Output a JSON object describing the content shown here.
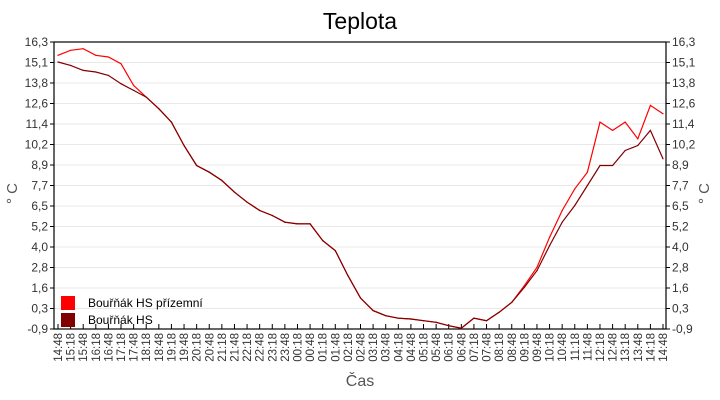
{
  "chart_data": {
    "type": "line",
    "title": "Teplota",
    "xlabel": "Čas",
    "ylabel": "° C",
    "ylim": [
      -0.9,
      16.3
    ],
    "yticks": [
      "16,3",
      "15,1",
      "13,8",
      "12,6",
      "11,4",
      "10,2",
      "8,9",
      "7,7",
      "6,5",
      "5,2",
      "4,0",
      "2,8",
      "1,6",
      "0,3",
      "-0,9"
    ],
    "grid": true,
    "legend_position": "bottom-left",
    "categories": [
      "14:48",
      "15:18",
      "15:48",
      "16:18",
      "16:48",
      "17:18",
      "17:48",
      "18:18",
      "18:48",
      "19:18",
      "19:48",
      "20:18",
      "20:48",
      "21:18",
      "21:48",
      "22:18",
      "22:48",
      "23:18",
      "23:48",
      "00:18",
      "00:48",
      "01:18",
      "01:48",
      "02:18",
      "02:48",
      "03:18",
      "03:48",
      "04:18",
      "04:48",
      "05:18",
      "05:48",
      "06:18",
      "06:48",
      "07:18",
      "07:48",
      "08:18",
      "08:48",
      "09:18",
      "09:48",
      "10:18",
      "10:48",
      "11:18",
      "11:48",
      "12:18",
      "12:48",
      "13:18",
      "13:48",
      "14:18",
      "14:48"
    ],
    "series": [
      {
        "name": "Bouřňák HS přízemní",
        "color": "#ff0000",
        "values": [
          15.5,
          15.8,
          15.9,
          15.5,
          15.4,
          15.0,
          13.7,
          13.0,
          12.3,
          11.5,
          10.1,
          8.9,
          8.5,
          8.0,
          7.3,
          6.7,
          6.2,
          5.9,
          5.5,
          5.4,
          5.4,
          4.4,
          3.8,
          2.3,
          0.96,
          0.2,
          -0.1,
          -0.25,
          -0.3,
          -0.4,
          -0.5,
          -0.7,
          -0.85,
          -0.25,
          -0.4,
          0.1,
          0.7,
          1.7,
          2.8,
          4.6,
          6.2,
          7.5,
          8.5,
          11.5,
          11.0,
          11.5,
          10.5,
          12.5,
          12.0
        ]
      },
      {
        "name": "Bouřňák HS",
        "color": "#800000",
        "values": [
          15.1,
          14.9,
          14.6,
          14.5,
          14.3,
          13.8,
          13.4,
          13.0,
          12.3,
          11.5,
          10.1,
          8.9,
          8.5,
          8.0,
          7.3,
          6.7,
          6.2,
          5.9,
          5.5,
          5.4,
          5.4,
          4.4,
          3.8,
          2.3,
          0.96,
          0.2,
          -0.1,
          -0.25,
          -0.3,
          -0.4,
          -0.5,
          -0.7,
          -0.85,
          -0.25,
          -0.4,
          0.1,
          0.7,
          1.6,
          2.6,
          4.1,
          5.5,
          6.5,
          7.7,
          8.9,
          8.9,
          9.8,
          10.1,
          11.0,
          9.3
        ]
      }
    ]
  }
}
